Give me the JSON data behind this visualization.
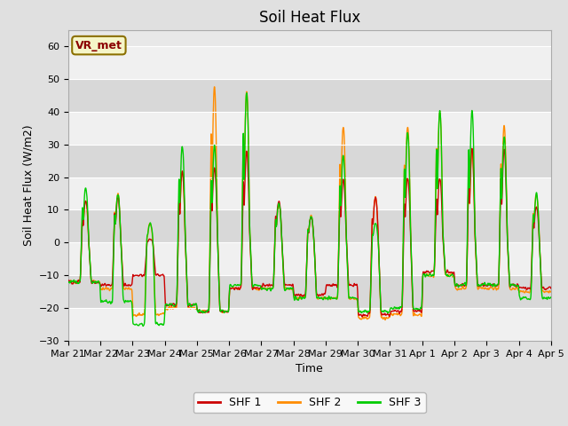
{
  "title": "Soil Heat Flux",
  "ylabel": "Soil Heat Flux (W/m2)",
  "xlabel": "Time",
  "ylim": [
    -30,
    65
  ],
  "yticks": [
    -30,
    -20,
    -10,
    0,
    10,
    20,
    30,
    40,
    50,
    60
  ],
  "x_tick_labels": [
    "Mar 21",
    "Mar 22",
    "Mar 23",
    "Mar 24",
    "Mar 25",
    "Mar 26",
    "Mar 27",
    "Mar 28",
    "Mar 29",
    "Mar 30",
    "Mar 31",
    "Apr 1",
    "Apr 2",
    "Apr 3",
    "Apr 4",
    "Apr 5"
  ],
  "shf1_color": "#cc0000",
  "shf2_color": "#ff8c00",
  "shf3_color": "#00cc00",
  "legend_entries": [
    "SHF 1",
    "SHF 2",
    "SHF 3"
  ],
  "annotation_text": "VR_met",
  "background_color": "#e0e0e0",
  "plot_bg_color": "#e8e8e8",
  "band_color_light": "#f0f0f0",
  "band_color_dark": "#d8d8d8",
  "title_fontsize": 12,
  "label_fontsize": 9,
  "tick_fontsize": 8,
  "linewidth": 1.0,
  "n_points": 4200,
  "days": 15
}
